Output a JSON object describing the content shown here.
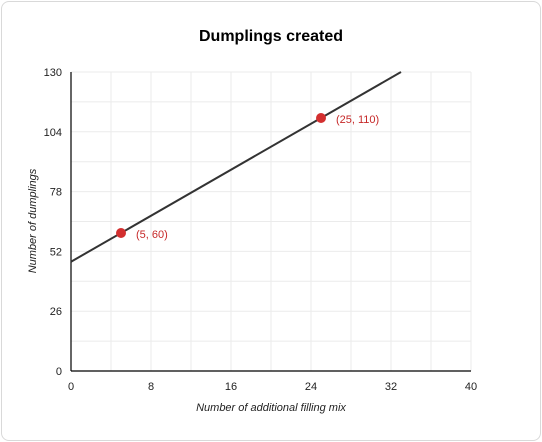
{
  "chart_data": {
    "type": "line",
    "title": "Dumplings created",
    "xlabel": "Number of additional filling mix",
    "ylabel": "Number of dumplings",
    "xlim": [
      0,
      40
    ],
    "ylim": [
      0,
      130
    ],
    "x_ticks": [
      0,
      8,
      16,
      24,
      32,
      40
    ],
    "y_ticks": [
      0,
      26,
      52,
      78,
      104,
      130
    ],
    "grid": true,
    "line": {
      "slope": 2.5,
      "intercept": 47.5,
      "x_start": 0,
      "x_end": 33
    },
    "points": [
      {
        "x": 5,
        "y": 60,
        "label": "(5, 60)"
      },
      {
        "x": 25,
        "y": 110,
        "label": "(25, 110)"
      }
    ],
    "colors": {
      "line": "#333333",
      "point": "#d32f2f",
      "point_label": "#c62828",
      "grid": "#ebebeb",
      "axis": "#000000"
    }
  }
}
